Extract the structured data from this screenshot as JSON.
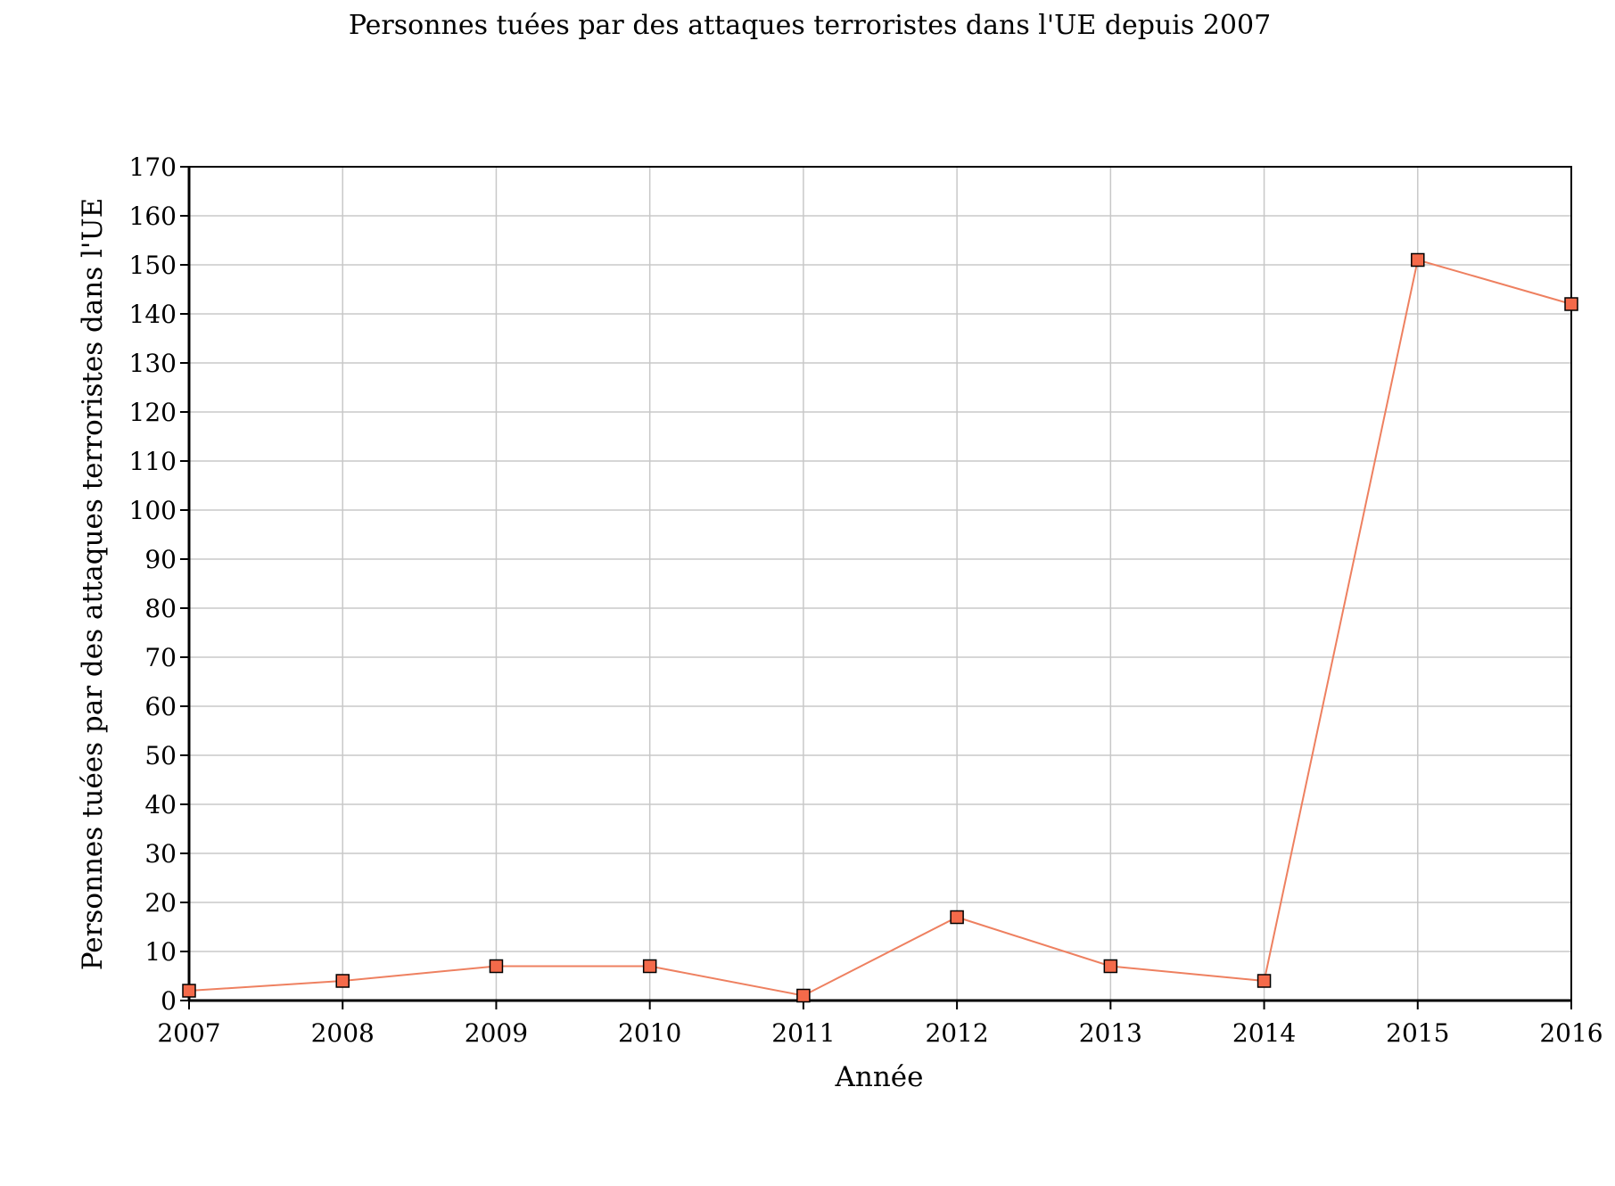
{
  "chart_data": {
    "type": "line",
    "title": "Personnes tuées par des attaques terroristes dans l'UE depuis 2007",
    "xlabel": "Année",
    "ylabel": "Personnes tuées par des attaques terroristes dans l'UE",
    "categories": [
      "2007",
      "2008",
      "2009",
      "2010",
      "2011",
      "2012",
      "2013",
      "2014",
      "2015",
      "2016"
    ],
    "series": [
      {
        "values": [
          2,
          4,
          7,
          7,
          1,
          17,
          7,
          4,
          151,
          142
        ]
      }
    ],
    "ylim": [
      0,
      170
    ],
    "yticks": [
      "0",
      "10",
      "20",
      "30",
      "40",
      "50",
      "60",
      "70",
      "80",
      "90",
      "100",
      "110",
      "120",
      "130",
      "140",
      "150",
      "160",
      "170"
    ],
    "grid": true,
    "legend": "none",
    "colors": {
      "line": "#ee8060",
      "marker_fill": "#f46a4a",
      "marker_stroke": "#000000",
      "grid": "#c8c8c8",
      "axis": "#000000"
    }
  }
}
